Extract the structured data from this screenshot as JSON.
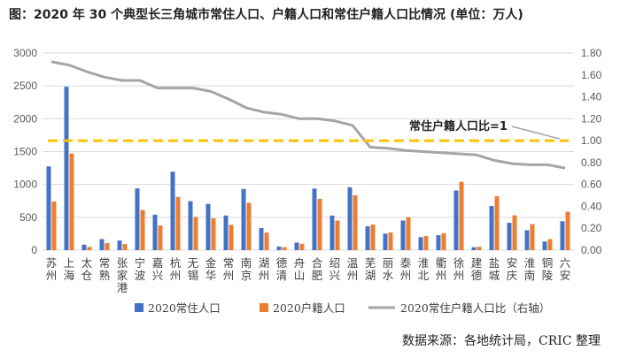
{
  "title": "图：2020 年 30 个典型长三角城市常住人口、户籍人口和常住户籍人口比情况 (单位：万人)",
  "source": "数据来源：各地统计局，CRIC 整理",
  "chart_data": {
    "type": "bar+line",
    "categories": [
      "苏州",
      "上海",
      "太仓",
      "常熟",
      "张家港",
      "宁波",
      "嘉兴",
      "杭州",
      "无锡",
      "金华",
      "常州",
      "南京",
      "湖州",
      "德清",
      "舟山",
      "合肥",
      "绍兴",
      "温州",
      "芜湖",
      "丽水",
      "泰州",
      "淮北",
      "衢州",
      "徐州",
      "建德",
      "盐城",
      "安庆",
      "淮南",
      "铜陵",
      "六安"
    ],
    "series": [
      {
        "name": "2020常住人口",
        "axis": "left",
        "color": "#4472C4",
        "values": [
          1275,
          2487,
          84,
          168,
          146,
          940,
          540,
          1194,
          746,
          705,
          528,
          931,
          337,
          55,
          116,
          937,
          527,
          957,
          364,
          251,
          451,
          197,
          228,
          908,
          45,
          671,
          417,
          303,
          131,
          440
        ]
      },
      {
        "name": "2020户籍人口",
        "axis": "left",
        "color": "#ED7D31",
        "values": [
          740,
          1470,
          49,
          107,
          93,
          610,
          375,
          810,
          505,
          485,
          385,
          720,
          268,
          44,
          96,
          780,
          450,
          835,
          390,
          270,
          500,
          215,
          258,
          1040,
          51,
          820,
          530,
          395,
          168,
          585
        ]
      },
      {
        "name": "2020常住户籍人口比（右轴）",
        "axis": "right",
        "color": "#A5A5A5",
        "values": [
          1.72,
          1.69,
          1.63,
          1.58,
          1.55,
          1.55,
          1.48,
          1.48,
          1.48,
          1.45,
          1.38,
          1.3,
          1.26,
          1.24,
          1.2,
          1.2,
          1.18,
          1.14,
          0.94,
          0.93,
          0.91,
          0.9,
          0.89,
          0.88,
          0.87,
          0.82,
          0.79,
          0.78,
          0.78,
          0.75
        ]
      }
    ],
    "reference_line": {
      "label": "常住户籍人口比=1",
      "value": 1.0,
      "axis": "right",
      "color": "#FFC000"
    },
    "ylim_left": [
      0,
      3000
    ],
    "yticks_left": [
      "0",
      "500",
      "1000",
      "1500",
      "2000",
      "2500",
      "3000"
    ],
    "ylim_right": [
      0,
      1.8
    ],
    "yticks_right": [
      "0.00",
      "0.20",
      "0.40",
      "0.60",
      "0.80",
      "1.00",
      "1.20",
      "1.40",
      "1.60",
      "1.80"
    ],
    "legend": {
      "position": "bottom"
    }
  }
}
